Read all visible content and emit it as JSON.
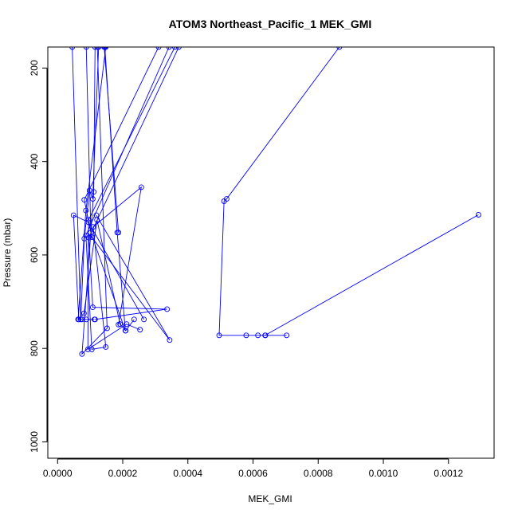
{
  "chart_data": {
    "type": "line",
    "title": "ATOM3 Northeast_Pacific_1 MEK_GMI",
    "xlabel": "MEK_GMI",
    "ylabel": "Pressure (mbar)",
    "xlim": [
      -3e-05,
      0.00134
    ],
    "ylim": [
      1035,
      155
    ],
    "y_reversed": true,
    "grid": false,
    "legend": "none",
    "color": "#0000ff",
    "x_ticks": [
      0,
      0.0002,
      0.0004,
      0.0006,
      0.0008,
      0.001,
      0.0012
    ],
    "x_tick_labels": [
      "0.0000",
      "0.0002",
      "0.0004",
      "0.0006",
      "0.0008",
      "0.0010",
      "0.0012"
    ],
    "y_ticks": [
      200,
      400,
      600,
      800,
      1000
    ],
    "y_tick_labels": [
      "200",
      "400",
      "600",
      "800",
      "1000"
    ],
    "series": [
      {
        "x": [
          4.5e-05,
          7.1e-05,
          8.2e-05,
          9.8e-05,
          0.000108,
          0.000126
        ],
        "y": [
          155,
          738,
          565,
          462,
          480,
          155
        ]
      },
      {
        "x": [
          0.000115,
          0.000111,
          7.5e-05,
          0.000152,
          0.000122
        ],
        "y": [
          155,
          465,
          812,
          757,
          155
        ]
      },
      {
        "x": [
          8.8e-05,
          0.000102,
          0.000208,
          0.000183,
          0.000145
        ],
        "y": [
          155,
          552,
          762,
          552,
          155
        ]
      },
      {
        "x": [
          0.000148,
          8.7e-05,
          6.3e-05,
          8.1e-05,
          0.000121,
          0.000192,
          0.000209,
          0.000235
        ],
        "y": [
          155,
          505,
          738,
          725,
          525,
          748,
          762,
          738
        ]
      },
      {
        "x": [
          0.000265,
          9.5e-05,
          4.9e-05,
          6.5e-05,
          7.5e-05,
          8.8e-05,
          0.000113
        ],
        "y": [
          738,
          530,
          515,
          738,
          738,
          738,
          738
        ]
      },
      {
        "x": [
          0.00031,
          8.2e-05,
          0.000105,
          0.000344,
          0.000119
        ],
        "y": [
          155,
          482,
          562,
          782,
          515
        ]
      },
      {
        "x": [
          0.00036,
          9.5e-05,
          9.3e-05,
          0.000212,
          0.000253
        ],
        "y": [
          155,
          525,
          802,
          748,
          760
        ]
      },
      {
        "x": [
          0.000372,
          9.6e-05,
          0.000108,
          0.000336,
          0.000115
        ],
        "y": [
          155,
          563,
          712,
          716,
          738
        ]
      },
      {
        "x": [
          0.000342,
          8.7e-05,
          0.000105,
          0.000148,
          0.000109,
          0.000257,
          0.000187
        ],
        "y": [
          155,
          558,
          802,
          797,
          540,
          455,
          749
        ]
      },
      {
        "x": [
          0.000143,
          0.000187
        ],
        "y": [
          155,
          552
        ]
      },
      {
        "x": [
          0.000865,
          0.000519,
          0.000511,
          0.000496,
          0.000579,
          0.000615,
          0.000638,
          0.000703
        ],
        "y": [
          155,
          480,
          485,
          772,
          772,
          772,
          772,
          772
        ]
      },
      {
        "x": [
          0.000637,
          0.001292
        ],
        "y": [
          772,
          514
        ]
      }
    ]
  }
}
